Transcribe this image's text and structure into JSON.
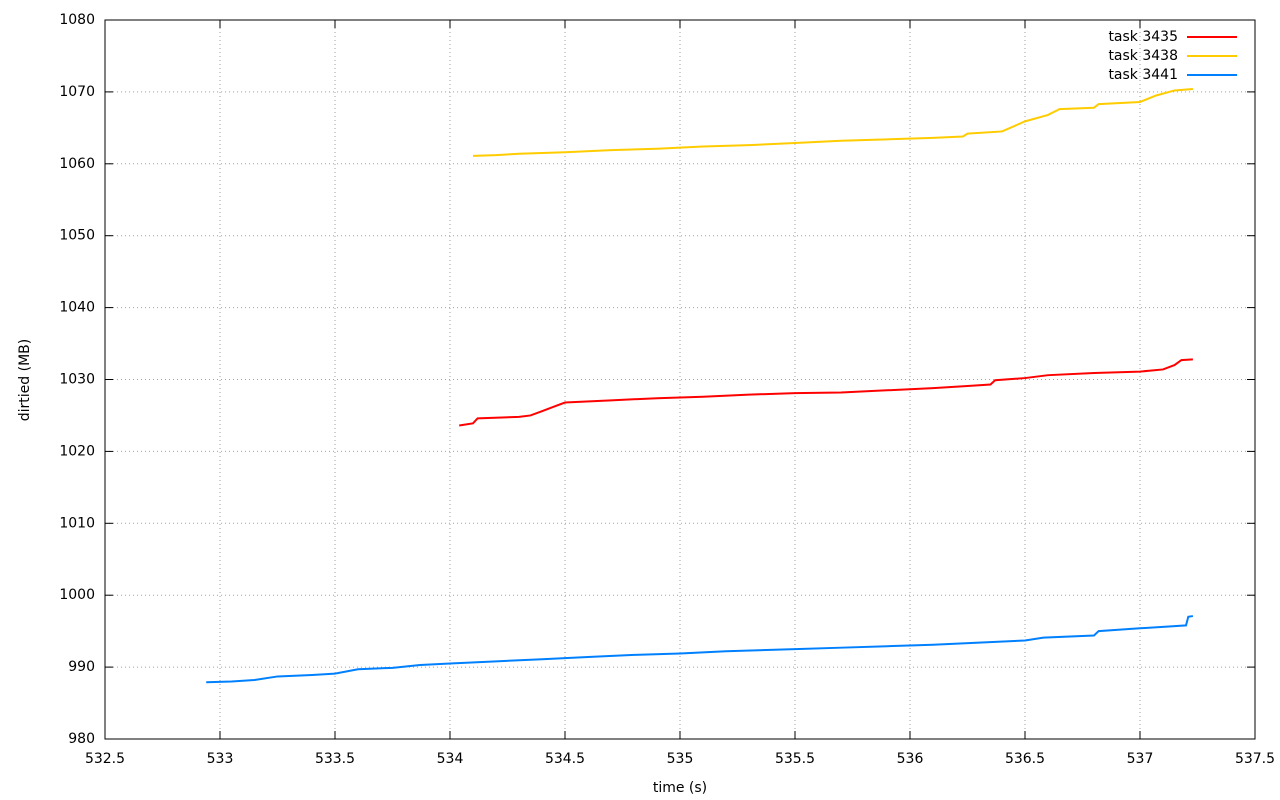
{
  "chart_data": {
    "type": "line",
    "x_label": "time (s)",
    "y_label": "dirtied (MB)",
    "xlim": [
      532.5,
      537.5
    ],
    "xticks": [
      532.5,
      533,
      533.5,
      534,
      534.5,
      535,
      535.5,
      536,
      536.5,
      537,
      537.5
    ],
    "ylim": [
      980,
      1080
    ],
    "yticks": [
      980,
      990,
      1000,
      1010,
      1020,
      1030,
      1040,
      1050,
      1060,
      1070,
      1080
    ],
    "grid": true,
    "legend": "top-right",
    "series": [
      {
        "name": "task 3435",
        "color": "#ff0000",
        "x": [
          534.04,
          534.1,
          534.12,
          534.3,
          534.35,
          534.4,
          534.45,
          534.5,
          534.7,
          534.9,
          535.1,
          535.3,
          535.5,
          535.7,
          535.9,
          536.1,
          536.25,
          536.35,
          536.37,
          536.5,
          536.6,
          536.8,
          537.0,
          537.1,
          537.15,
          537.18,
          537.23
        ],
        "values": [
          1023.6,
          1023.9,
          1024.6,
          1024.8,
          1025.0,
          1025.6,
          1026.2,
          1026.8,
          1027.1,
          1027.4,
          1027.6,
          1027.9,
          1028.1,
          1028.2,
          1028.5,
          1028.8,
          1029.1,
          1029.3,
          1029.9,
          1030.2,
          1030.6,
          1030.9,
          1031.1,
          1031.4,
          1032.0,
          1032.7,
          1032.8
        ]
      },
      {
        "name": "task 3438",
        "color": "#ffcc00",
        "x": [
          534.1,
          534.2,
          534.3,
          534.5,
          534.7,
          534.9,
          535.1,
          535.3,
          535.5,
          535.7,
          535.9,
          536.1,
          536.23,
          536.25,
          536.4,
          536.45,
          536.5,
          536.6,
          536.65,
          536.8,
          536.82,
          537.0,
          537.07,
          537.15,
          537.23
        ],
        "values": [
          1061.1,
          1061.2,
          1061.4,
          1061.6,
          1061.9,
          1062.1,
          1062.4,
          1062.6,
          1062.9,
          1063.2,
          1063.4,
          1063.6,
          1063.8,
          1064.2,
          1064.5,
          1065.2,
          1065.9,
          1066.8,
          1067.6,
          1067.8,
          1068.3,
          1068.6,
          1069.5,
          1070.2,
          1070.4
        ]
      },
      {
        "name": "task 3441",
        "color": "#0080ff",
        "x": [
          532.94,
          533.05,
          533.15,
          533.25,
          533.4,
          533.5,
          533.6,
          533.75,
          533.87,
          534.0,
          534.2,
          534.4,
          534.6,
          534.8,
          535.0,
          535.2,
          535.5,
          535.7,
          535.9,
          536.1,
          536.3,
          536.5,
          536.58,
          536.8,
          536.82,
          537.0,
          537.1,
          537.2,
          537.21,
          537.23
        ],
        "values": [
          987.9,
          988.0,
          988.2,
          988.7,
          988.9,
          989.1,
          989.7,
          989.9,
          990.3,
          990.5,
          990.8,
          991.1,
          991.4,
          991.7,
          991.9,
          992.2,
          992.5,
          992.7,
          992.9,
          993.1,
          993.4,
          993.7,
          994.1,
          994.4,
          995.0,
          995.4,
          995.6,
          995.8,
          997.0,
          997.1
        ]
      }
    ]
  }
}
